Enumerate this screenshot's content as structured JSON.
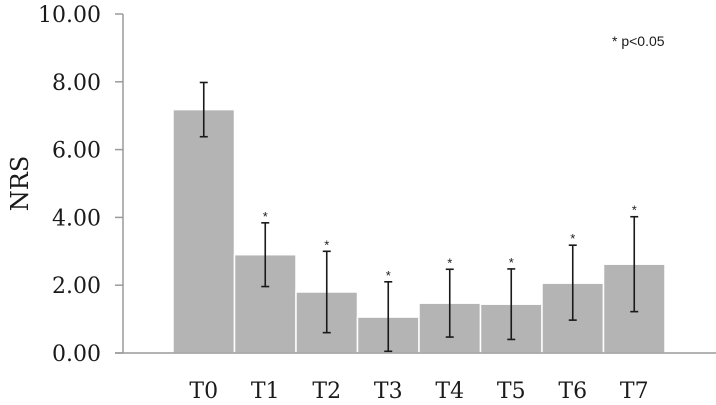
{
  "chart_data": {
    "type": "bar",
    "categories": [
      "T0",
      "T1",
      "T2",
      "T3",
      "T4",
      "T5",
      "T6",
      "T7"
    ],
    "values": [
      7.18,
      2.9,
      1.8,
      1.06,
      1.47,
      1.44,
      2.06,
      2.62
    ],
    "error_low": [
      6.38,
      1.96,
      0.6,
      0.05,
      0.47,
      0.4,
      0.97,
      1.22
    ],
    "error_high": [
      7.98,
      3.84,
      3.0,
      2.1,
      2.47,
      2.48,
      3.18,
      4.02
    ],
    "significance_marks": [
      "",
      "*",
      "*",
      "*",
      "*",
      "*",
      "*",
      "*"
    ],
    "annotation": "* p<0.05",
    "title": "",
    "xlabel": "",
    "ylabel": "NRS",
    "ylim": [
      0,
      10
    ],
    "y_ticks": [
      "0.00",
      "2.00",
      "4.00",
      "6.00",
      "8.00",
      "10.00"
    ],
    "grid": false,
    "colors": {
      "bar": "#b4b4b4",
      "bar_stroke": "#ffffff",
      "axis": "#9a9a9a",
      "text": "#1a1a1a"
    }
  }
}
